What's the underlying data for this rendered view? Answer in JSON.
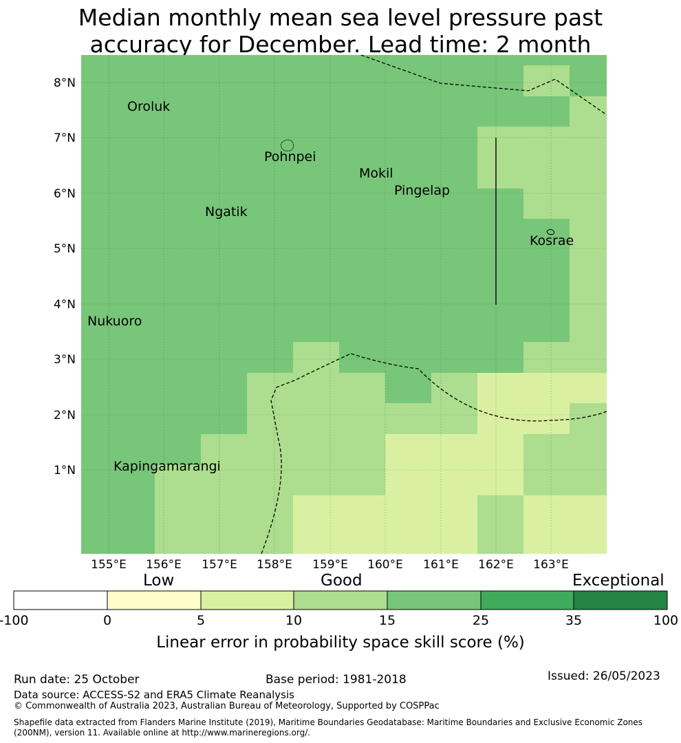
{
  "title": {
    "line1": "Median monthly mean sea level pressure past",
    "line2": "accuracy for December. Lead time: 2 month"
  },
  "map": {
    "lat_labels": [
      "8°N",
      "7°N",
      "6°N",
      "5°N",
      "4°N",
      "3°N",
      "2°N",
      "1°N"
    ],
    "lon_labels": [
      "155°E",
      "156°E",
      "157°E",
      "158°E",
      "159°E",
      "160°E",
      "161°E",
      "162°E",
      "163°E"
    ],
    "places": [
      "Oroluk",
      "Pohnpei",
      "Mokil",
      "Pingelap",
      "Ngatik",
      "Kosrae",
      "Nukuoro",
      "Kapingamarangi"
    ]
  },
  "colorbar": {
    "categories": [
      "Low",
      "Good",
      "Exceptional"
    ],
    "ticks": [
      "-100",
      "0",
      "5",
      "10",
      "15",
      "25",
      "35",
      "100"
    ],
    "colors": [
      "#ffffff",
      "#ffffcc",
      "#d9f0a3",
      "#addd8e",
      "#78c679",
      "#41ab5d",
      "#238443"
    ],
    "label": "Linear error in probability space skill score (%)"
  },
  "footer": {
    "run_date": "Run date: 25 October",
    "base_period": "Base period: 1981-2018",
    "issued": "Issued: 26/05/2023",
    "data_source": "Data source: ACCESS-S2 and ERA5 Climate Reanalysis",
    "copyright": "© Commonwealth of Australia 2023, Australian Bureau of Meteorology, Supported by COSPPac",
    "shapefile_line1": "Shapefile data extracted from Flanders Marine Institute (2019), Maritime Boundaries Geodatabase: Maritime Boundaries and Exclusive Economic Zones",
    "shapefile_line2": "(200NM), version 11. Available online at http://www.marineregions.org/."
  }
}
